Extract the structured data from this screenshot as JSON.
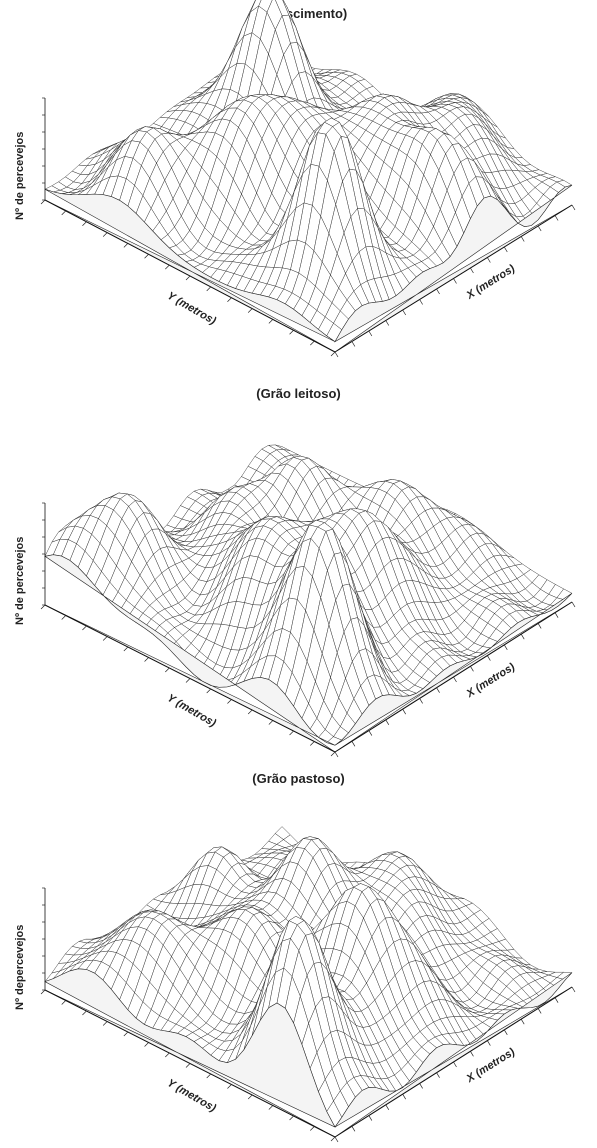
{
  "chart_data": [
    {
      "type": "surface",
      "title": "(Florescimento)",
      "zlabel": "Nº de percevejos",
      "xlabel": "X (metros)",
      "ylabel": "Y (metros)",
      "grid_size": [
        36,
        36
      ],
      "zlim": [
        0,
        40
      ],
      "peaks": [
        {
          "x": 0.2,
          "y": 0.18,
          "h": 38
        },
        {
          "x": 0.35,
          "y": 0.55,
          "h": 26
        },
        {
          "x": 0.55,
          "y": 0.35,
          "h": 22
        },
        {
          "x": 0.7,
          "y": 0.8,
          "h": 30
        },
        {
          "x": 0.15,
          "y": 0.75,
          "h": 18
        },
        {
          "x": 0.85,
          "y": 0.3,
          "h": 16
        },
        {
          "x": 0.6,
          "y": 0.1,
          "h": 20
        }
      ]
    },
    {
      "type": "surface",
      "title": "(Grão leitoso)",
      "zlabel": "Nº de percevejos",
      "xlabel": "X (metros)",
      "ylabel": "Y (metros)",
      "grid_size": [
        36,
        36
      ],
      "zlim": [
        0,
        40
      ],
      "peaks": [
        {
          "x": 0.18,
          "y": 0.2,
          "h": 40
        },
        {
          "x": 0.3,
          "y": 0.45,
          "h": 28
        },
        {
          "x": 0.15,
          "y": 0.88,
          "h": 22
        },
        {
          "x": 0.5,
          "y": 0.3,
          "h": 24
        },
        {
          "x": 0.65,
          "y": 0.65,
          "h": 18
        },
        {
          "x": 0.8,
          "y": 0.4,
          "h": 16
        },
        {
          "x": 0.45,
          "y": 0.7,
          "h": 14
        }
      ]
    },
    {
      "type": "surface",
      "title": "(Grão pastoso)",
      "zlabel": "Nº depercevejos",
      "xlabel": "X (metros)",
      "ylabel": "Y (metros)",
      "grid_size": [
        36,
        36
      ],
      "zlim": [
        0,
        40
      ],
      "peaks": [
        {
          "x": 0.1,
          "y": 0.2,
          "h": 40
        },
        {
          "x": 0.45,
          "y": 0.25,
          "h": 30
        },
        {
          "x": 0.3,
          "y": 0.55,
          "h": 20
        },
        {
          "x": 0.6,
          "y": 0.6,
          "h": 22
        },
        {
          "x": 0.15,
          "y": 0.8,
          "h": 16
        },
        {
          "x": 0.8,
          "y": 0.45,
          "h": 18
        },
        {
          "x": 0.55,
          "y": 0.85,
          "h": 14
        }
      ]
    }
  ]
}
